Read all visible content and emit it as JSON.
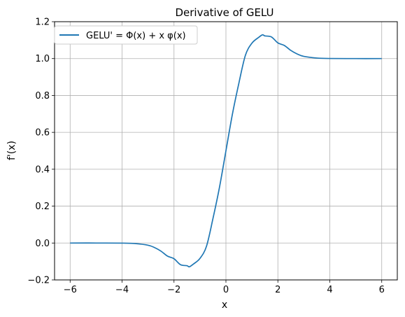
{
  "chart_data": {
    "type": "line",
    "title": "Derivative of GELU",
    "xlabel": "x",
    "ylabel": "f'(x)",
    "xlim": [
      -6.6,
      6.6
    ],
    "ylim": [
      -0.2,
      1.2
    ],
    "xticks": [
      -6,
      -4,
      -2,
      0,
      2,
      4,
      6
    ],
    "yticks": [
      -0.2,
      0.0,
      0.2,
      0.4,
      0.6,
      0.8,
      1.0,
      1.2
    ],
    "xtick_labels": [
      "−6",
      "−4",
      "−2",
      "0",
      "2",
      "4",
      "6"
    ],
    "ytick_labels": [
      "−0.2",
      "0.0",
      "0.2",
      "0.4",
      "0.6",
      "0.8",
      "1.0",
      "1.2"
    ],
    "grid": true,
    "legend_position": "top-left",
    "series": [
      {
        "name": "GELU' = Φ(x) + x φ(x)",
        "color": "#1f77b4",
        "x": [
          -6.0,
          -5.0,
          -4.0,
          -3.5,
          -3.0,
          -2.75,
          -2.5,
          -2.25,
          -2.0,
          -1.75,
          -1.5,
          -1.41,
          -1.25,
          -1.0,
          -0.75,
          -0.5,
          -0.25,
          0.0,
          0.25,
          0.5,
          0.75,
          1.0,
          1.25,
          1.41,
          1.5,
          1.75,
          2.0,
          2.25,
          2.5,
          2.75,
          3.0,
          3.5,
          4.0,
          5.0,
          6.0
        ],
        "y": [
          0.0,
          0.0,
          -0.0005,
          -0.0029,
          -0.0118,
          -0.0244,
          -0.0441,
          -0.0711,
          -0.0852,
          -0.1176,
          -0.1229,
          -0.1289,
          -0.1138,
          -0.0833,
          -0.0178,
          0.1325,
          0.301,
          0.5,
          0.699,
          0.8675,
          1.0178,
          1.0833,
          1.1138,
          1.1289,
          1.1229,
          1.1176,
          1.0852,
          1.0711,
          1.0441,
          1.0244,
          1.0118,
          1.0029,
          1.0005,
          1.0,
          1.0
        ]
      }
    ]
  }
}
